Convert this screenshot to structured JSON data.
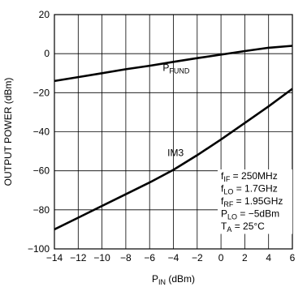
{
  "chart_data": {
    "type": "line",
    "title": "",
    "xlabel": {
      "base": "P",
      "sub": "IN",
      "rest": " (dBm)"
    },
    "ylabel": "OUTPUT POWER (dBm)",
    "xlim": [
      -14,
      6
    ],
    "ylim": [
      -100,
      20
    ],
    "xticks": [
      -14,
      -12,
      -10,
      -8,
      -6,
      -4,
      -2,
      0,
      2,
      4,
      6
    ],
    "xtick_labels": [
      "−14",
      "−12",
      "−10",
      "−8",
      "−6",
      "−4",
      "−2",
      "0",
      "2",
      "4",
      "6"
    ],
    "yticks": [
      -100,
      -80,
      -60,
      -40,
      -20,
      0,
      20
    ],
    "ytick_labels": [
      "−100",
      "−80",
      "−60",
      "−40",
      "−20",
      "0",
      "20"
    ],
    "grid": true,
    "series": [
      {
        "name": "P_FUND",
        "label": {
          "base": "P",
          "sub": "FUND",
          "x": -4.9,
          "y": -8.8
        },
        "x": [
          -14,
          -12,
          -10,
          -8,
          -6,
          -4,
          -2,
          0,
          2,
          4,
          6
        ],
        "y": [
          -14,
          -12,
          -10,
          -8,
          -6.2,
          -4.2,
          -2.3,
          -0.5,
          1.3,
          3,
          4
        ]
      },
      {
        "name": "IM3",
        "label": {
          "base": "IM3",
          "sub": "",
          "x": -4.5,
          "y": -52.5
        },
        "x": [
          -14,
          -12,
          -10,
          -8,
          -6,
          -4,
          -2,
          0,
          2,
          4,
          6
        ],
        "y": [
          -90,
          -84,
          -78,
          -72,
          -66,
          -59.5,
          -52,
          -44,
          -35.5,
          -27,
          -18
        ]
      }
    ],
    "conditions": [
      {
        "base": "f",
        "sub": "IF",
        "rest": " = 250MHz"
      },
      {
        "base": "f",
        "sub": "LO",
        "rest": " = 1.7GHz"
      },
      {
        "base": "f",
        "sub": "RF",
        "rest": " = 1.95GHz"
      },
      {
        "base": "P",
        "sub": "LO",
        "rest": " = −5dBm"
      },
      {
        "base": "T",
        "sub": "A",
        "rest": " = 25°C"
      }
    ]
  }
}
